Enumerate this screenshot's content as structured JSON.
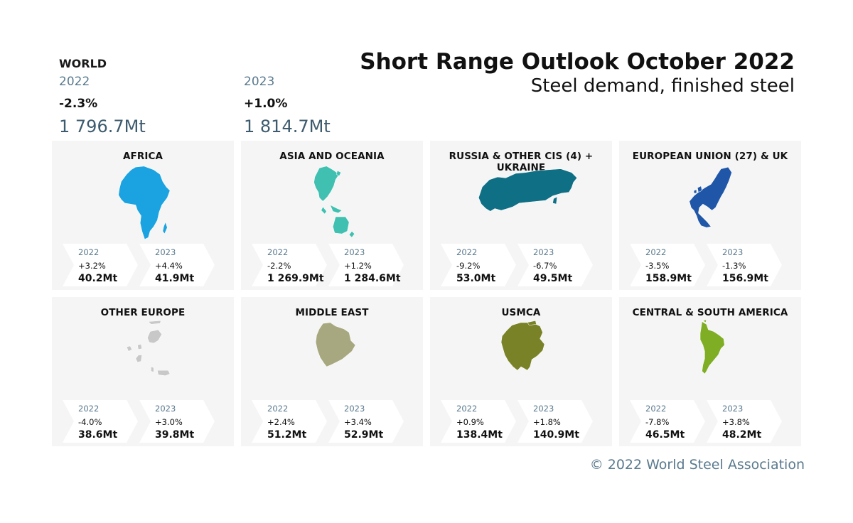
{
  "title": "Short Range Outlook October 2022",
  "subtitle": "Steel demand, finished steel",
  "world": {
    "label": "WORLD",
    "y2022": {
      "year": "2022",
      "change": "-2.3%",
      "value": "1 796.7Mt"
    },
    "y2023": {
      "year": "2023",
      "change": "+1.0%",
      "value": "1 814.7Mt"
    }
  },
  "copyright": "© 2022 World Steel Association",
  "colors": {
    "africa": "#1aa3e0",
    "asia": "#3fc0b0",
    "russia": "#0f6f85",
    "eu": "#1f56a8",
    "other_europe": "#c8c8c8",
    "middle_east": "#a8a880",
    "usmca": "#7a8228",
    "csa": "#7fae24",
    "year_text": "#5a7a8e"
  },
  "chart_data": {
    "type": "table",
    "title": "Short Range Outlook October 2022 — Steel demand, finished steel",
    "unit": "Mt",
    "world": {
      "2022": {
        "change_pct": -2.3,
        "value": 1796.7
      },
      "2023": {
        "change_pct": 1.0,
        "value": 1814.7
      }
    },
    "regions": [
      {
        "key": "africa",
        "name": "AFRICA",
        "icon": "africa-map-icon",
        "y2022": {
          "year": "2022",
          "change": "+3.2%",
          "value": "40.2Mt"
        },
        "y2023": {
          "year": "2023",
          "change": "+4.4%",
          "value": "41.9Mt"
        }
      },
      {
        "key": "asia",
        "name": "ASIA AND OCEANIA",
        "icon": "asia-oceania-map-icon",
        "y2022": {
          "year": "2022",
          "change": "-2.2%",
          "value": "1 269.9Mt"
        },
        "y2023": {
          "year": "2023",
          "change": "+1.2%",
          "value": "1 284.6Mt"
        }
      },
      {
        "key": "russia",
        "name": "RUSSIA & OTHER CIS (4) + UKRAINE",
        "icon": "russia-cis-map-icon",
        "y2022": {
          "year": "2022",
          "change": "-9.2%",
          "value": "53.0Mt"
        },
        "y2023": {
          "year": "2023",
          "change": "-6.7%",
          "value": "49.5Mt"
        }
      },
      {
        "key": "eu",
        "name": "EUROPEAN UNION (27) & UK",
        "icon": "eu-uk-map-icon",
        "y2022": {
          "year": "2022",
          "change": "-3.5%",
          "value": "158.9Mt"
        },
        "y2023": {
          "year": "2023",
          "change": "-1.3%",
          "value": "156.9Mt"
        }
      },
      {
        "key": "other_europe",
        "name": "OTHER EUROPE",
        "icon": "other-europe-map-icon",
        "y2022": {
          "year": "2022",
          "change": "-4.0%",
          "value": "38.6Mt"
        },
        "y2023": {
          "year": "2023",
          "change": "+3.0%",
          "value": "39.8Mt"
        }
      },
      {
        "key": "middle_east",
        "name": "MIDDLE EAST",
        "icon": "middle-east-map-icon",
        "y2022": {
          "year": "2022",
          "change": "+2.4%",
          "value": "51.2Mt"
        },
        "y2023": {
          "year": "2023",
          "change": "+3.4%",
          "value": "52.9Mt"
        }
      },
      {
        "key": "usmca",
        "name": "USMCA",
        "icon": "north-america-map-icon",
        "y2022": {
          "year": "2022",
          "change": "+0.9%",
          "value": "138.4Mt"
        },
        "y2023": {
          "year": "2023",
          "change": "+1.8%",
          "value": "140.9Mt"
        }
      },
      {
        "key": "csa",
        "name": "CENTRAL & SOUTH AMERICA",
        "icon": "south-america-map-icon",
        "y2022": {
          "year": "2022",
          "change": "-7.8%",
          "value": "46.5Mt"
        },
        "y2023": {
          "year": "2023",
          "change": "+3.8%",
          "value": "48.2Mt"
        }
      }
    ]
  }
}
